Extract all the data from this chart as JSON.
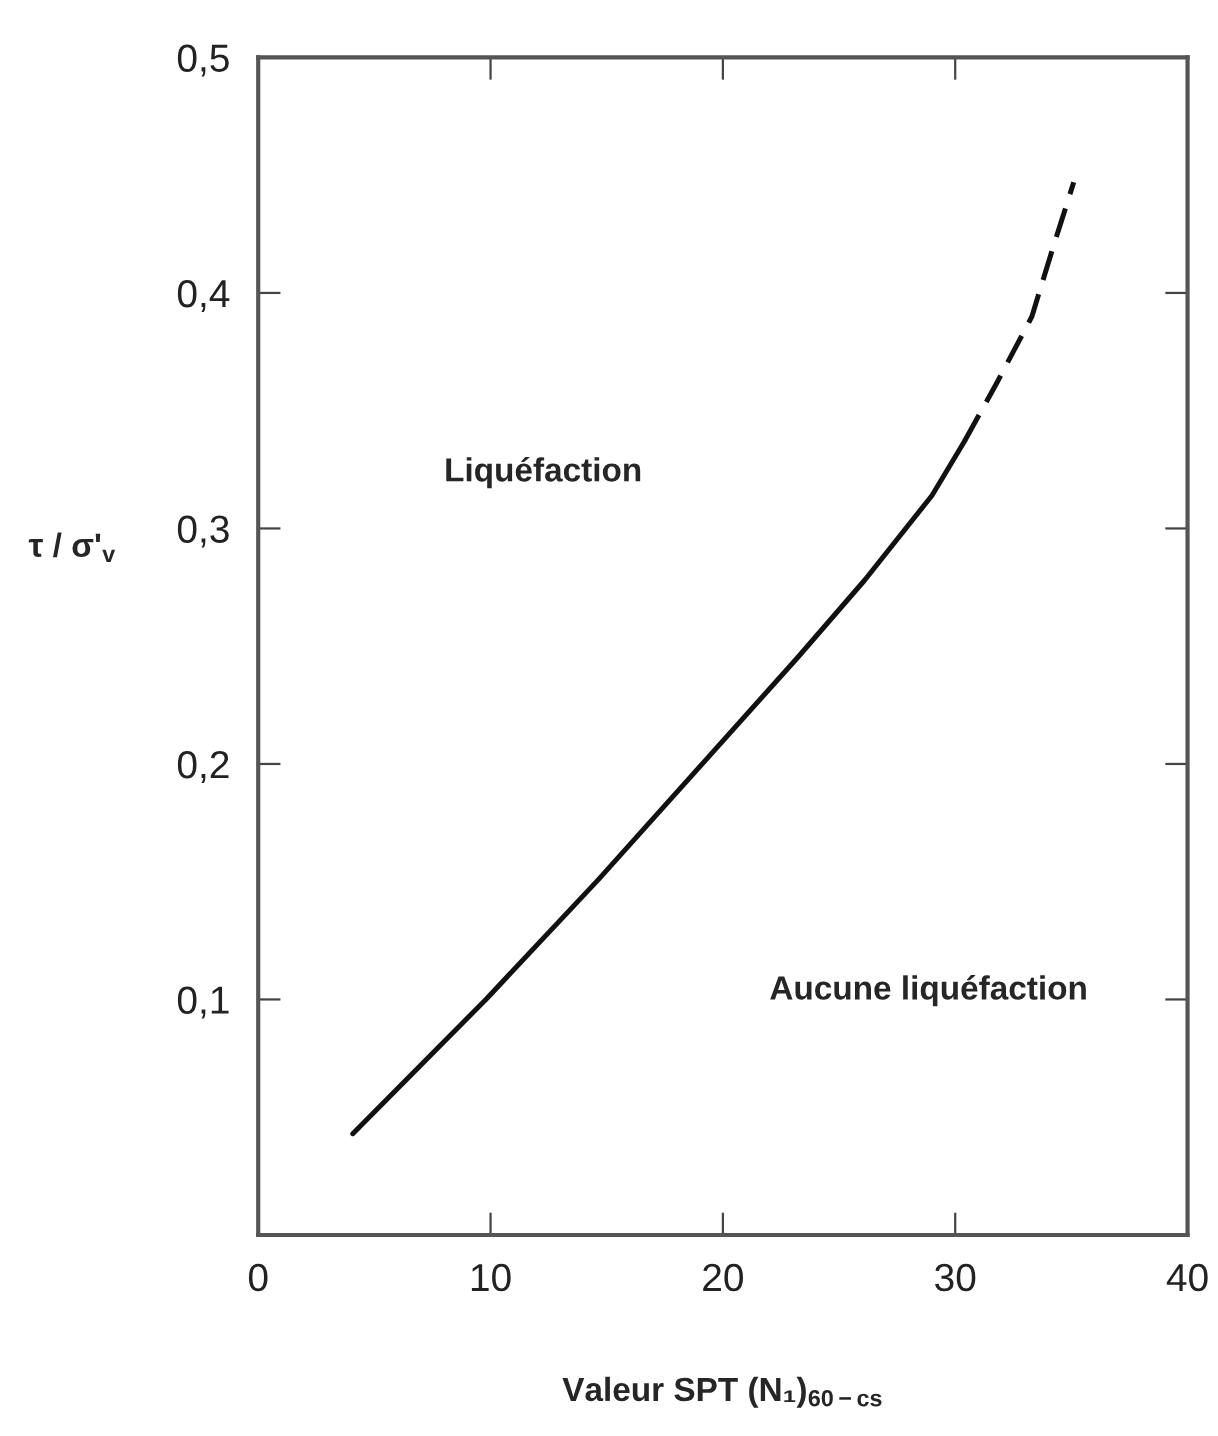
{
  "chart_data": {
    "type": "line",
    "xlabel": "Valeur SPT (N₁)$_{60−cs}$",
    "ylabel": "τ / σ'$_{v}$",
    "series": [
      {
        "color": "#111111",
        "line_style": "solid",
        "x": [
          4.07,
          9.8,
          14.65,
          19.2,
          23.2,
          26.1,
          29.0,
          30.4
        ],
        "values": [
          0.043,
          0.1,
          0.151,
          0.201,
          0.245,
          0.278,
          0.314,
          0.337
        ]
      },
      {
        "color": "#111111",
        "line_style": "dashed",
        "x": [
          30.4,
          31.8,
          33.3,
          34.2,
          35.1
        ],
        "values": [
          0.337,
          0.362,
          0.39,
          0.419,
          0.447
        ]
      }
    ],
    "xlim": [
      0,
      40
    ],
    "ylim": [
      0,
      0.5
    ],
    "xticks": [
      0,
      10,
      20,
      30,
      40
    ],
    "yticks": [
      {
        "value": 0.1,
        "label": "0,1"
      },
      {
        "value": 0.2,
        "label": "0,2"
      },
      {
        "value": 0.3,
        "label": "0,3"
      },
      {
        "value": 0.4,
        "label": "0,4"
      },
      {
        "value": 0.5,
        "label": "0,5"
      }
    ],
    "annotations": [
      "Liquéfaction",
      "Aucune liquéfaction"
    ],
    "grid": false,
    "legend": false
  }
}
